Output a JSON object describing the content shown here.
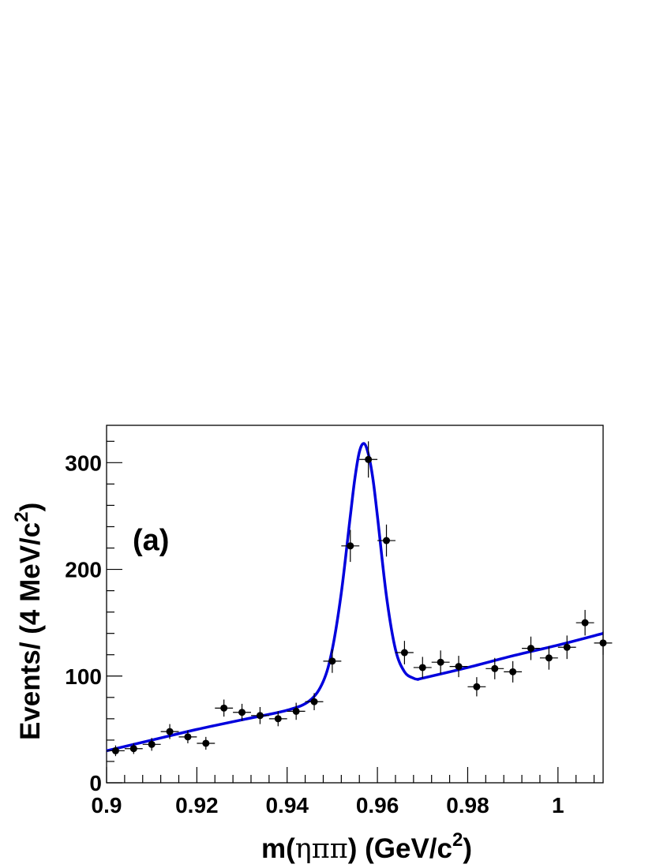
{
  "chart_data": {
    "type": "scatter",
    "panel_label": "(a)",
    "xlabel": {
      "pre": "m(",
      "greek": "ηππ",
      "post": ") (GeV/c",
      "sup": "2",
      "end": ")"
    },
    "ylabel": {
      "pre": "Events/ (4 MeV/c",
      "sup": "2",
      "end": ")"
    },
    "xlim": [
      0.9,
      1.01
    ],
    "ylim": [
      0,
      335
    ],
    "x_ticks": [
      "0.9",
      "0.92",
      "0.94",
      "0.96",
      "0.98",
      "1"
    ],
    "y_ticks": [
      "0",
      "100",
      "200",
      "300"
    ],
    "bin_width": 0.004,
    "series": [
      {
        "kind": "data",
        "x": [
          0.902,
          0.906,
          0.91,
          0.914,
          0.918,
          0.922,
          0.926,
          0.93,
          0.934,
          0.938,
          0.942,
          0.946,
          0.95,
          0.954,
          0.958,
          0.962,
          0.966,
          0.97,
          0.974,
          0.978,
          0.982,
          0.986,
          0.99,
          0.994,
          0.998,
          1.002,
          1.006,
          1.01
        ],
        "y": [
          30,
          32,
          36,
          48,
          43,
          37,
          70,
          66,
          63,
          60,
          67,
          76,
          114,
          222,
          303,
          227,
          122,
          108,
          113,
          109,
          90,
          107,
          104,
          126,
          117,
          127,
          150,
          131
        ],
        "yerr": [
          5,
          5,
          6,
          7,
          6,
          6,
          8,
          8,
          8,
          7,
          8,
          8,
          11,
          15,
          17,
          15,
          11,
          10,
          11,
          10,
          9,
          10,
          10,
          11,
          11,
          11,
          12,
          11
        ]
      },
      {
        "kind": "fit",
        "color": "#0000dd",
        "x": [
          0.9,
          0.91,
          0.92,
          0.93,
          0.94,
          0.945,
          0.948,
          0.95,
          0.952,
          0.954,
          0.955,
          0.956,
          0.957,
          0.958,
          0.959,
          0.96,
          0.962,
          0.964,
          0.966,
          0.968,
          0.969,
          0.97,
          0.98,
          0.99,
          1.0,
          1.01
        ],
        "y": [
          30,
          40,
          50,
          59,
          68,
          77,
          95,
          125,
          178,
          250,
          285,
          310,
          318,
          308,
          285,
          250,
          175,
          125,
          104,
          98,
          97,
          98,
          108,
          119,
          129,
          140
        ]
      }
    ]
  }
}
